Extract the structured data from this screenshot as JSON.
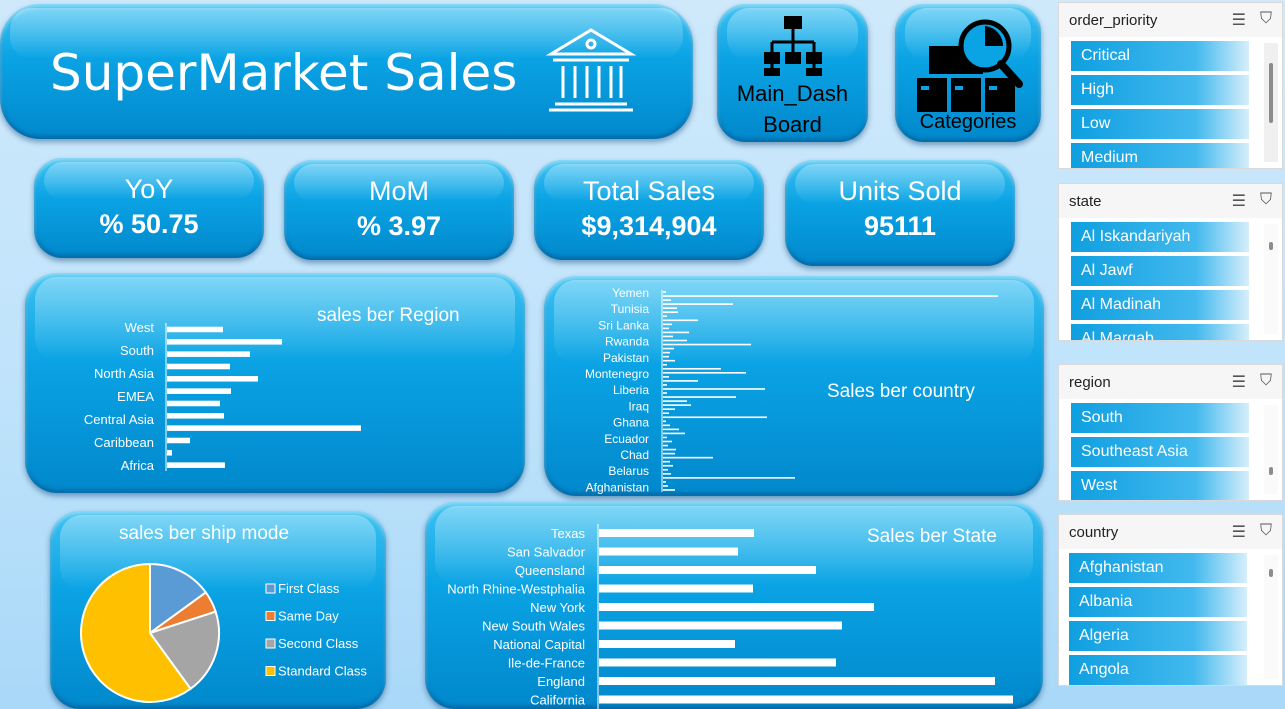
{
  "header": {
    "title": "SuperMarket Sales"
  },
  "nav": {
    "main_dashboard": "Main_Dash Board",
    "main_line1": "Main_Dash",
    "main_line2": "Board",
    "categories": "Categories"
  },
  "kpis": [
    {
      "label": "YoY",
      "value": "% 50.75"
    },
    {
      "label": "MoM",
      "value": "% 3.97"
    },
    {
      "label": "Total Sales",
      "value": "$9,314,904"
    },
    {
      "label": "Units Sold",
      "value": "95111"
    }
  ],
  "slicers": {
    "order_priority": {
      "title": "order_priority",
      "items": [
        "Critical",
        "High",
        "Low",
        "Medium"
      ]
    },
    "state": {
      "title": "state",
      "items": [
        "Al Iskandariyah",
        "Al Jawf",
        "Al Madinah",
        "Al Marqab"
      ]
    },
    "region": {
      "title": "region",
      "items": [
        "South",
        "Southeast Asia",
        "West"
      ]
    },
    "country": {
      "title": "country",
      "items": [
        "Afghanistan",
        "Albania",
        "Algeria",
        "Angola"
      ]
    }
  },
  "colors": {
    "card": "#0aa3e4",
    "bar": "#ffffff",
    "accent": "#1fa9e8"
  },
  "chart_data": [
    {
      "type": "bar",
      "orientation": "horizontal",
      "title": "sales ber Region",
      "tick_labels": [
        "West",
        "South",
        "North Asia",
        "EMEA",
        "Central Asia",
        "Caribbean",
        "Africa"
      ],
      "values": [
        56,
        115,
        83,
        63,
        91,
        64,
        53,
        57,
        194,
        23,
        5,
        58
      ],
      "note_categories_shown": "every other label shown"
    },
    {
      "type": "bar",
      "orientation": "horizontal",
      "title": "Sales ber country",
      "tick_labels": [
        "Yemen",
        "Tunisia",
        "Sri Lanka",
        "Rwanda",
        "Pakistan",
        "Montenegro",
        "Liberia",
        "Iraq",
        "Ghana",
        "Ecuador",
        "Chad",
        "Belarus",
        "Afghanistan"
      ],
      "values": [
        3,
        335,
        8,
        70,
        14,
        15,
        4,
        35,
        9,
        6,
        26,
        10,
        24,
        88,
        11,
        7,
        6,
        12,
        4,
        58,
        83,
        6,
        35,
        4,
        102,
        4,
        73,
        24,
        28,
        12,
        6,
        104,
        3,
        7,
        16,
        22,
        4,
        9,
        5,
        13,
        12,
        50,
        7,
        10,
        5,
        8,
        132,
        3,
        5,
        12
      ]
    },
    {
      "type": "pie",
      "title": "sales ber ship mode",
      "legend": [
        "First Class",
        "Same Day",
        "Second Class",
        "Standard Class"
      ],
      "values": [
        15,
        5,
        20,
        60
      ],
      "colors": [
        "#5b9bd5",
        "#ed7d31",
        "#a5a5a5",
        "#ffc000"
      ]
    },
    {
      "type": "bar",
      "orientation": "horizontal",
      "title": "Sales ber State",
      "categories": [
        "Texas",
        "San Salvador",
        "Queensland",
        "North Rhine-Westphalia",
        "New York",
        "New South Wales",
        "National Capital",
        "Ile-de-France",
        "England",
        "California"
      ],
      "values": [
        155,
        139,
        217,
        154,
        275,
        243,
        136,
        237,
        396,
        414
      ]
    }
  ]
}
